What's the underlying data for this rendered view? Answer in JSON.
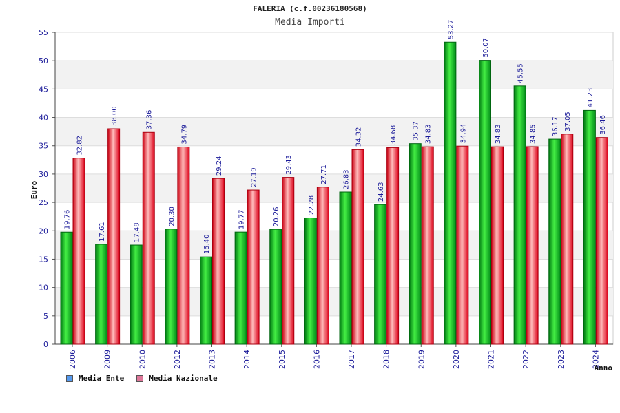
{
  "chart_data": {
    "type": "bar",
    "title": "FALERIA (c.f.00236180568)",
    "subtitle": "Media Importi",
    "xlabel": "Anno",
    "ylabel": "Euro",
    "ylim": [
      0,
      55
    ],
    "yticks": [
      0,
      5,
      10,
      15,
      20,
      25,
      30,
      35,
      40,
      45,
      50,
      55
    ],
    "grid": true,
    "legend_position": "bottom-left",
    "categories": [
      "2006",
      "2009",
      "2010",
      "2012",
      "2013",
      "2014",
      "2015",
      "2016",
      "2017",
      "2018",
      "2019",
      "2020",
      "2021",
      "2022",
      "2023",
      "2024"
    ],
    "series": [
      {
        "name": "Media Ente",
        "legend_color": "#5599ee",
        "bar_color": "#00aa22",
        "values": [
          19.76,
          17.61,
          17.48,
          20.3,
          15.4,
          19.77,
          20.26,
          22.28,
          26.83,
          24.63,
          35.37,
          53.27,
          50.07,
          45.55,
          36.17,
          41.23
        ],
        "labels": [
          "19.76",
          "17.61",
          "17.48",
          "20.30",
          "15.40",
          "19.77",
          "20.26",
          "22.28",
          "26.83",
          "24.63",
          "35.37",
          "53.27",
          "50.07",
          "45.55",
          "36.17",
          "41.23"
        ]
      },
      {
        "name": "Media Nazionale",
        "legend_color": "#dd7799",
        "bar_color": "#ee1122",
        "values": [
          32.82,
          38.0,
          37.36,
          34.79,
          29.24,
          27.19,
          29.43,
          27.71,
          34.32,
          34.68,
          34.83,
          34.94,
          34.83,
          34.85,
          37.05,
          36.46
        ],
        "labels": [
          "32.82",
          "38.00",
          "37.36",
          "34.79",
          "29.24",
          "27.19",
          "29.43",
          "27.71",
          "34.32",
          "34.68",
          "34.83",
          "34.94",
          "34.83",
          "34.85",
          "37.05",
          "36.46"
        ]
      }
    ]
  }
}
